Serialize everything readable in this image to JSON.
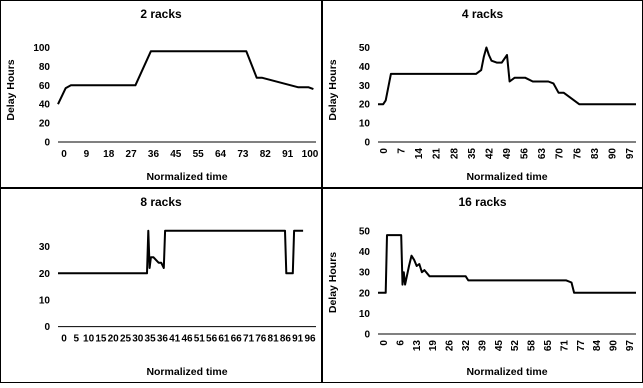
{
  "chart_data": [
    {
      "type": "line",
      "title": "2 racks",
      "xlabel": "Normalized time",
      "ylabel": "Delay Hours",
      "xlim": [
        0,
        100
      ],
      "ylim": [
        0,
        110
      ],
      "yticks": [
        0,
        20,
        40,
        60,
        80,
        100
      ],
      "xtick_labels": [
        "0",
        "9",
        "18",
        "27",
        "36",
        "45",
        "55",
        "64",
        "73",
        "82",
        "91",
        "100"
      ],
      "grid": "off",
      "x": [
        0,
        3,
        5,
        30,
        36,
        73,
        77,
        79,
        93,
        97,
        99
      ],
      "y": [
        40,
        57,
        60,
        60,
        96,
        96,
        68,
        68,
        58,
        58,
        56
      ]
    },
    {
      "type": "line",
      "title": "4 racks",
      "xlabel": "Normalized time",
      "ylabel": "Delay Hours",
      "xlim": [
        0,
        100
      ],
      "ylim": [
        0,
        55
      ],
      "yticks": [
        0,
        10,
        20,
        30,
        40,
        50
      ],
      "xtick_labels": [
        "0",
        "7",
        "14",
        "21",
        "28",
        "35",
        "42",
        "49",
        "56",
        "63",
        "70",
        "76",
        "83",
        "90",
        "97"
      ],
      "grid": "off",
      "x": [
        0,
        2,
        3,
        5,
        38,
        40,
        41,
        42,
        43,
        44,
        46,
        48,
        50,
        51,
        53,
        57,
        60,
        66,
        68,
        70,
        72,
        74,
        78,
        100
      ],
      "y": [
        20,
        20,
        22,
        36,
        36,
        38,
        45,
        50,
        46,
        43,
        42,
        42,
        46,
        32,
        34,
        34,
        32,
        32,
        31,
        26,
        26,
        24,
        20,
        20
      ]
    },
    {
      "type": "line",
      "title": "8 racks",
      "xlabel": "Normalized time",
      "ylabel": "",
      "xlim": [
        0,
        100
      ],
      "ylim": [
        -2,
        40
      ],
      "yticks": [
        0,
        10,
        20,
        30
      ],
      "xtick_labels": [
        "0",
        "5",
        "10",
        "15",
        "20",
        "25",
        "30",
        "35",
        "36",
        "41",
        "46",
        "51",
        "56",
        "61",
        "66",
        "71",
        "76",
        "81",
        "86",
        "91",
        "96"
      ],
      "grid": "off",
      "x": [
        0,
        34.5,
        35,
        35.5,
        36,
        37,
        39,
        40,
        41,
        41.5,
        42,
        44,
        88,
        88.5,
        90,
        91,
        91.5,
        95
      ],
      "y": [
        20,
        20,
        36,
        22,
        26,
        26,
        24,
        24,
        22,
        36,
        36,
        36,
        36,
        20,
        20,
        20,
        36,
        36
      ]
    },
    {
      "type": "line",
      "title": "16 racks",
      "xlabel": "Normalized time",
      "ylabel": "Delay Hours",
      "xlim": [
        0,
        100
      ],
      "ylim": [
        0,
        50
      ],
      "yticks": [
        0,
        10,
        20,
        30,
        40,
        50
      ],
      "xtick_labels": [
        "0",
        "6",
        "13",
        "19",
        "26",
        "32",
        "39",
        "45",
        "52",
        "58",
        "65",
        "71",
        "77",
        "84",
        "90",
        "97"
      ],
      "grid": "off",
      "x": [
        0,
        3,
        3.5,
        9,
        9.5,
        10,
        10.5,
        12,
        13,
        14,
        15,
        16,
        17,
        18,
        20,
        34,
        35,
        73,
        75,
        76,
        77,
        100
      ],
      "y": [
        20,
        20,
        48,
        48,
        24,
        30,
        24,
        33,
        38,
        36,
        33,
        34,
        30,
        31,
        28,
        28,
        26,
        26,
        25,
        20,
        20,
        20
      ]
    }
  ]
}
